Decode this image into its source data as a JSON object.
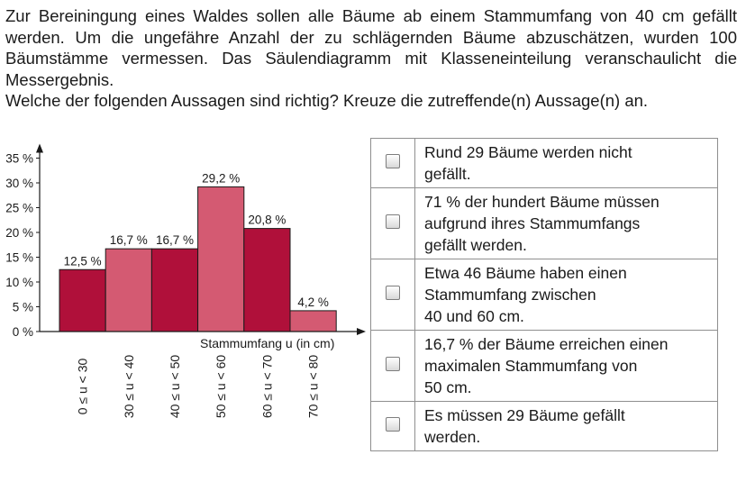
{
  "intro": {
    "lines": [
      "Zur Bereiningung eines Waldes sollen alle Bäume ab einem Stammumfang von 40 cm gefällt werden. Um die ungefähre Anzahl der zu schlägernden Bäume abzuschätzen, wurden 100 Bäumstämme vermessen. Das Säulendiagramm mit Klasseneinteilung veranschaulicht die Messergebnis."
    ],
    "question": "Welche der folgenden Aussagen sind richtig? Kreuze die zutreffende(n) Aussage(n) an."
  },
  "chart_data": {
    "type": "bar",
    "categories": [
      "0 ≤ u < 30",
      "30 ≤ u < 40",
      "40 ≤ u < 50",
      "50 ≤ u < 60",
      "60 ≤ u < 70",
      "70 ≤ u < 80"
    ],
    "values": [
      12.5,
      16.7,
      16.7,
      29.2,
      20.8,
      4.2
    ],
    "data_labels": [
      "12,5 %",
      "16,7 %",
      "16,7 %",
      "29,2 %",
      "20,8 %",
      "4,2 %"
    ],
    "bar_colors": [
      "#b0103a",
      "#d45a72",
      "#b0103a",
      "#d45a72",
      "#b0103a",
      "#d45a72"
    ],
    "y_ticks": [
      0,
      5,
      10,
      15,
      20,
      25,
      30,
      35
    ],
    "y_tick_labels": [
      "0 %",
      "5 %",
      "10 %",
      "15 %",
      "20 %",
      "25 %",
      "30 %",
      "35 %"
    ],
    "ylim": [
      0,
      35
    ],
    "xlabel": "Stammumfang u (in cm)",
    "ylabel": "",
    "grid": false
  },
  "statements": [
    {
      "lines": [
        "Rund 29 Bäume werden nicht",
        "gefällt."
      ]
    },
    {
      "lines": [
        "71 % der hundert Bäume müssen",
        "aufgrund ihres Stammumfangs",
        "gefällt werden."
      ]
    },
    {
      "lines": [
        "Etwa 46 Bäume haben einen",
        "Stammumfang zwischen",
        "40 und 60 cm."
      ]
    },
    {
      "lines": [
        "16,7 % der Bäume erreichen einen",
        "maximalen Stammumfang von",
        "50 cm."
      ]
    },
    {
      "lines": [
        "Es müssen 29 Bäume gefällt",
        "werden."
      ]
    }
  ]
}
